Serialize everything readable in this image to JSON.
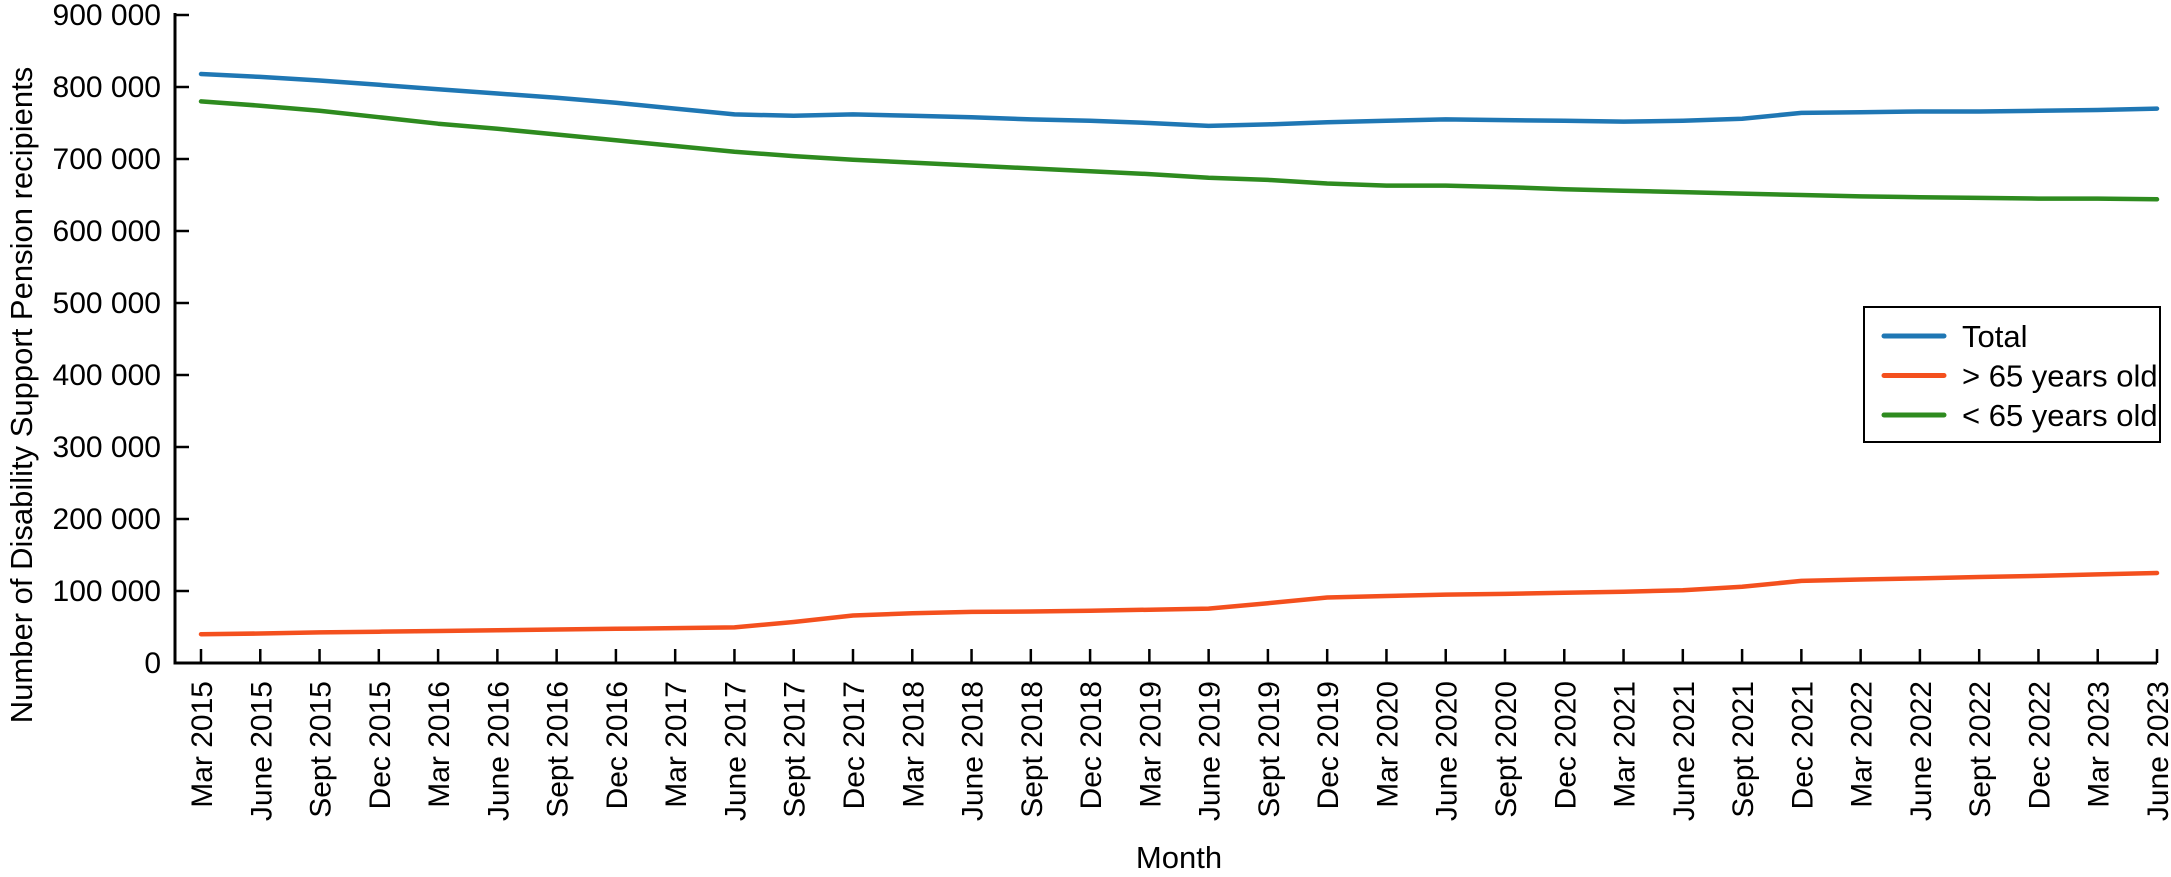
{
  "chart_data": {
    "type": "line",
    "title": "",
    "xlabel": "Month",
    "ylabel": "Number of Disability Support Pension recipients",
    "ylim": [
      0,
      900000
    ],
    "ytick_step": 100000,
    "ytick_labels": [
      "0",
      "100 000",
      "200 000",
      "300 000",
      "400 000",
      "500 000",
      "600 000",
      "700 000",
      "800 000",
      "900 000"
    ],
    "grid": false,
    "legend_position": "center-right",
    "tick_direction": "in",
    "categories": [
      "Mar 2015",
      "June 2015",
      "Sept 2015",
      "Dec 2015",
      "Mar 2016",
      "June 2016",
      "Sept 2016",
      "Dec 2016",
      "Mar 2017",
      "June 2017",
      "Sept 2017",
      "Dec 2017",
      "Mar 2018",
      "June 2018",
      "Sept 2018",
      "Dec 2018",
      "Mar 2019",
      "June 2019",
      "Sept 2019",
      "Dec 2019",
      "Mar 2020",
      "June 2020",
      "Sept 2020",
      "Dec 2020",
      "Mar 2021",
      "June 2021",
      "Sept 2021",
      "Dec 2021",
      "Mar 2022",
      "June 2022",
      "Sept 2022",
      "Dec 2022",
      "Mar 2023",
      "June 2023"
    ],
    "series": [
      {
        "name": "Total",
        "color": "#1f77b4",
        "values": [
          818000,
          814000,
          809000,
          803000,
          797000,
          791000,
          785000,
          778000,
          770000,
          762000,
          760000,
          762000,
          760000,
          758000,
          755000,
          753000,
          750000,
          746000,
          748000,
          751000,
          753000,
          755000,
          754000,
          753000,
          752000,
          753000,
          756000,
          764000,
          765000,
          766000,
          766000,
          767000,
          768000,
          770000
        ]
      },
      {
        "name": "> 65 years old",
        "color": "#f4501e",
        "values": [
          40000,
          41000,
          42500,
          43500,
          44500,
          45500,
          46500,
          47500,
          48500,
          49500,
          57000,
          66000,
          69000,
          71000,
          71500,
          72500,
          74000,
          75500,
          83000,
          91000,
          93000,
          95000,
          96000,
          97500,
          99000,
          101000,
          106000,
          114000,
          116000,
          117500,
          119500,
          121000,
          123000,
          125000
        ]
      },
      {
        "name": "< 65 years old",
        "color": "#2e8b1f",
        "values": [
          780000,
          774000,
          767000,
          758000,
          749000,
          742000,
          734000,
          726000,
          718000,
          710000,
          704000,
          699000,
          695000,
          691000,
          687000,
          683000,
          679000,
          674000,
          671000,
          666000,
          663000,
          663000,
          661000,
          658000,
          656000,
          654000,
          652000,
          650000,
          648000,
          647000,
          646000,
          645000,
          645000,
          644000
        ]
      }
    ]
  }
}
